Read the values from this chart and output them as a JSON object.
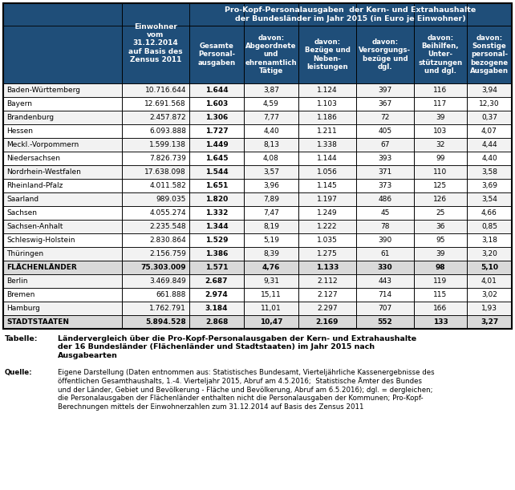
{
  "header_bg": "#1f4e79",
  "header_text_color": "#ffffff",
  "row_bg_odd": "#f2f2f2",
  "row_bg_even": "#ffffff",
  "summary_bg": "#d9d9d9",
  "col0_header": "",
  "col1_header": "Einwohner\nvom\n31.12.2014\nauf Basis des\nZensus 2011",
  "main_header_line1": "Pro-Kopf-Personalausgaben  der Kern- und Extrahaushalte",
  "main_header_line2": "der Bundesländer im Jahr 2015 (in Euro je Einwohner)",
  "sub_headers": [
    "Gesamte\nPersonal-\nausgaben",
    "davon:\nAbgeordnete\nund\nehrenamtlich\nTätige",
    "davon:\nBezüge und\nNeben-\nleistungen",
    "davon:\nVersorgungs-\nbezüge und\ndgl.",
    "davon:\nBeihilfen,\nUnter-\nstützungen\nund dgl.",
    "davon:\nSonstige\npersonal-\nbezogene\nAusgaben"
  ],
  "sub_header_underline": [
    false,
    true,
    true,
    true,
    true,
    true
  ],
  "rows": [
    [
      "Baden-Württemberg",
      "10.716.644",
      "1.644",
      "3,87",
      "1.124",
      "397",
      "116",
      "3,94"
    ],
    [
      "Bayern",
      "12.691.568",
      "1.603",
      "4,59",
      "1.103",
      "367",
      "117",
      "12,30"
    ],
    [
      "Brandenburg",
      "2.457.872",
      "1.306",
      "7,77",
      "1.186",
      "72",
      "39",
      "0,37"
    ],
    [
      "Hessen",
      "6.093.888",
      "1.727",
      "4,40",
      "1.211",
      "405",
      "103",
      "4,07"
    ],
    [
      "Meckl.-Vorpommern",
      "1.599.138",
      "1.449",
      "8,13",
      "1.338",
      "67",
      "32",
      "4,44"
    ],
    [
      "Niedersachsen",
      "7.826.739",
      "1.645",
      "4,08",
      "1.144",
      "393",
      "99",
      "4,40"
    ],
    [
      "Nordrhein-Westfalen",
      "17.638.098",
      "1.544",
      "3,57",
      "1.056",
      "371",
      "110",
      "3,58"
    ],
    [
      "Rheinland-Pfalz",
      "4.011.582",
      "1.651",
      "3,96",
      "1.145",
      "373",
      "125",
      "3,69"
    ],
    [
      "Saarland",
      "989.035",
      "1.820",
      "7,89",
      "1.197",
      "486",
      "126",
      "3,54"
    ],
    [
      "Sachsen",
      "4.055.274",
      "1.332",
      "7,47",
      "1.249",
      "45",
      "25",
      "4,66"
    ],
    [
      "Sachsen-Anhalt",
      "2.235.548",
      "1.344",
      "8,19",
      "1.222",
      "78",
      "36",
      "0,85"
    ],
    [
      "Schleswig-Holstein",
      "2.830.864",
      "1.529",
      "5,19",
      "1.035",
      "390",
      "95",
      "3,18"
    ],
    [
      "Thüringen",
      "2.156.759",
      "1.386",
      "8,39",
      "1.275",
      "61",
      "39",
      "3,20"
    ],
    [
      "FLÄCHENLÄNDER",
      "75.303.009",
      "1.571",
      "4,76",
      "1.133",
      "330",
      "98",
      "5,10"
    ],
    [
      "Berlin",
      "3.469.849",
      "2.687",
      "9,31",
      "2.112",
      "443",
      "119",
      "4,01"
    ],
    [
      "Bremen",
      "661.888",
      "2.974",
      "15,11",
      "2.127",
      "714",
      "115",
      "3,02"
    ],
    [
      "Hamburg",
      "1.762.791",
      "3.184",
      "11,01",
      "2.297",
      "707",
      "166",
      "1,93"
    ],
    [
      "STADTSTAATEN",
      "5.894.528",
      "2.868",
      "10,47",
      "2.169",
      "552",
      "133",
      "3,27"
    ]
  ],
  "summary_rows": [
    "FLÄCHENLÄNDER",
    "STADTSTAATEN"
  ],
  "caption_label": "Tabelle:",
  "caption_text": "Ländervergleich über die Pro-Kopf-Personalausgaben der Kern- und Extrahaushalte\nder 16 Bundesländer (Flächenländer und Stadtstaaten) im Jahr 2015 nach\nAusgabearten",
  "source_label": "Quelle:",
  "source_text": "Eigene Darstellung (Daten entnommen aus: Statistisches Bundesamt, Vierteljährliche Kassenergebnisse des\nöffentlichen Gesamthaushalts, 1.-4. Vierteljahr 2015, Abruf am 4.5.2016;  Statistische Ämter des Bundes\nund der Länder, Gebiet und Bevölkerung - Fläche und Bevölkerung, Abruf am 6.5.2016); dgl. = dergleichen;\ndie Personalausgaben der Flächenländer enthalten nicht die Personalausgaben der Kommunen; Pro-Kopf-\nBerechnungen mittels der Einwohnerzahlen zum 31.12.2014 auf Basis des Zensus 2011"
}
